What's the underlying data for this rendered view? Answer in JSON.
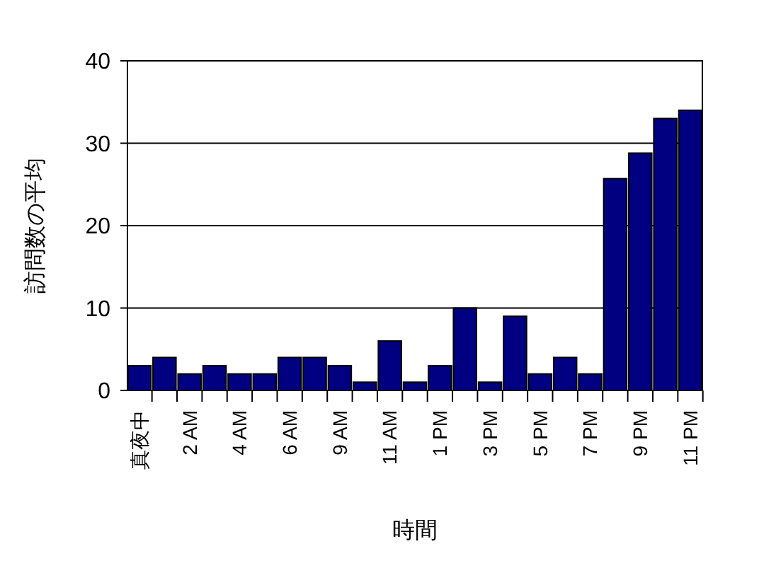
{
  "chart_data": {
    "type": "bar",
    "xlabel": "時間",
    "ylabel": "訪問数の平均",
    "categories": [
      "真夜中",
      null,
      "2 AM",
      null,
      "4 AM",
      null,
      "6 AM",
      null,
      "9 AM",
      null,
      "11 AM",
      null,
      "1 PM",
      null,
      "3 PM",
      null,
      "5 PM",
      null,
      "7 PM",
      null,
      "9 PM",
      null,
      "11 PM"
    ],
    "values": [
      3,
      4,
      2,
      3,
      2,
      2,
      4,
      4,
      3,
      1,
      6,
      1,
      3,
      10,
      1,
      9,
      2,
      4,
      2,
      25.7,
      28.8,
      33,
      34
    ],
    "color": "#000080",
    "ylim": [
      0,
      40
    ],
    "yticks": [
      0,
      10,
      20,
      30,
      40
    ],
    "grid": "y"
  }
}
